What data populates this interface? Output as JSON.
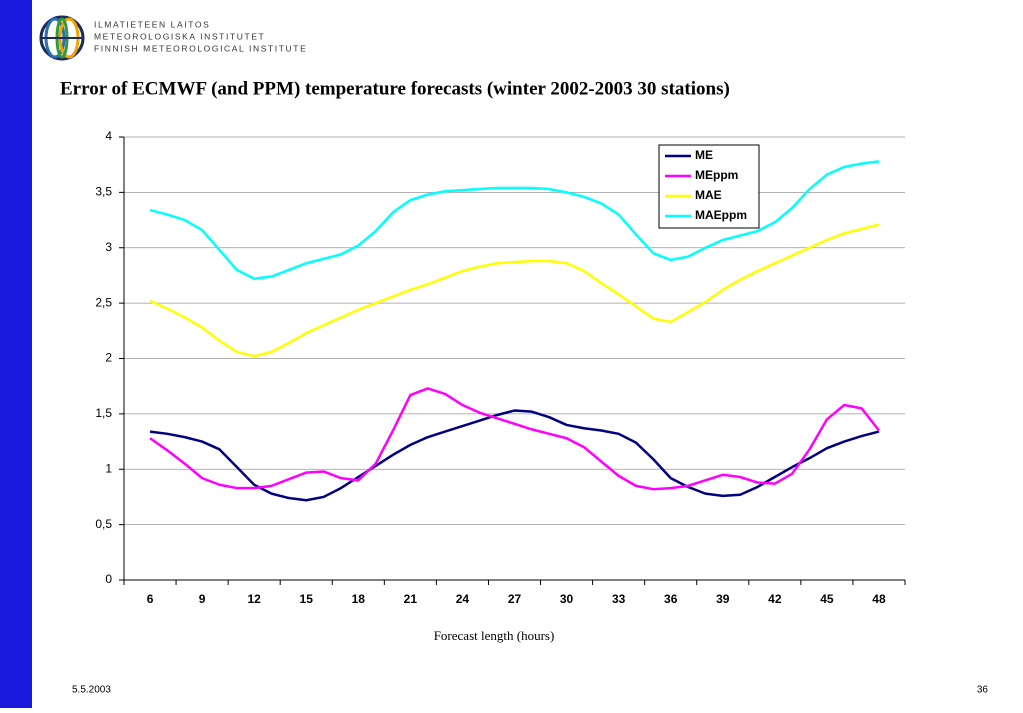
{
  "header": {
    "logo_lines": [
      "ILMATIETEEN LAITOS",
      "METEOROLOGISKA INSTITUTET",
      "FINNISH METEOROLOGICAL INSTITUTE"
    ]
  },
  "chart_data": {
    "type": "line",
    "title": "Error of ECMWF (and PPM) temperature forecasts (winter 2002-2003 30 stations)",
    "xlabel": "Forecast length (hours)",
    "x": [
      6,
      7,
      8,
      9,
      10,
      11,
      12,
      13,
      14,
      15,
      16,
      17,
      18,
      19,
      20,
      21,
      22,
      23,
      24,
      25,
      26,
      27,
      28,
      29,
      30,
      31,
      32,
      33,
      34,
      35,
      36,
      37,
      38,
      39,
      40,
      41,
      42,
      43,
      44,
      45,
      46,
      47,
      48
    ],
    "xlim": [
      4.5,
      49.5
    ],
    "xticks": [
      6,
      9,
      12,
      15,
      18,
      21,
      24,
      27,
      30,
      33,
      36,
      39,
      42,
      45,
      48
    ],
    "ylim": [
      0,
      4
    ],
    "yticks": [
      0,
      {
        "value": 0.5,
        "label": "0,5"
      },
      1,
      {
        "value": 1.5,
        "label": "1,5"
      },
      2,
      {
        "value": 2.5,
        "label": "2,5"
      },
      3,
      {
        "value": 3.5,
        "label": "3,5"
      },
      4
    ],
    "grid": true,
    "legend": "upper right",
    "series": [
      {
        "name": "ME",
        "color": "#000080",
        "values": [
          1.34,
          1.32,
          1.29,
          1.25,
          1.18,
          1.02,
          0.86,
          0.78,
          0.74,
          0.72,
          0.75,
          0.83,
          0.93,
          1.03,
          1.13,
          1.22,
          1.29,
          1.34,
          1.39,
          1.44,
          1.49,
          1.53,
          1.52,
          1.47,
          1.4,
          1.37,
          1.35,
          1.32,
          1.24,
          1.09,
          0.92,
          0.84,
          0.78,
          0.76,
          0.77,
          0.84,
          0.93,
          1.02,
          1.1,
          1.19,
          1.25,
          1.3,
          1.34
        ]
      },
      {
        "name": "MEppm",
        "color": "#ff00ff",
        "values": [
          1.28,
          1.17,
          1.05,
          0.92,
          0.86,
          0.83,
          0.83,
          0.85,
          0.91,
          0.97,
          0.98,
          0.92,
          0.9,
          1.05,
          1.35,
          1.67,
          1.73,
          1.68,
          1.58,
          1.51,
          1.46,
          1.41,
          1.36,
          1.32,
          1.28,
          1.2,
          1.07,
          0.94,
          0.85,
          0.82,
          0.83,
          0.85,
          0.9,
          0.95,
          0.93,
          0.88,
          0.87,
          0.96,
          1.18,
          1.45,
          1.58,
          1.55,
          1.35
        ]
      },
      {
        "name": "MAE",
        "color": "#ffff00",
        "values": [
          2.52,
          2.45,
          2.37,
          2.28,
          2.16,
          2.06,
          2.02,
          2.06,
          2.14,
          2.23,
          2.3,
          2.37,
          2.44,
          2.5,
          2.56,
          2.62,
          2.67,
          2.73,
          2.79,
          2.83,
          2.86,
          2.87,
          2.88,
          2.88,
          2.86,
          2.79,
          2.68,
          2.58,
          2.47,
          2.36,
          2.33,
          2.42,
          2.51,
          2.62,
          2.71,
          2.79,
          2.86,
          2.93,
          3.0,
          3.07,
          3.13,
          3.17,
          3.21
        ]
      },
      {
        "name": "MAEppm",
        "color": "#00ffff",
        "values": [
          3.34,
          3.3,
          3.25,
          3.16,
          2.98,
          2.8,
          2.72,
          2.74,
          2.8,
          2.86,
          2.9,
          2.94,
          3.02,
          3.15,
          3.32,
          3.43,
          3.48,
          3.51,
          3.52,
          3.53,
          3.54,
          3.54,
          3.54,
          3.53,
          3.5,
          3.46,
          3.4,
          3.3,
          3.12,
          2.95,
          2.89,
          2.92,
          3.0,
          3.07,
          3.11,
          3.15,
          3.23,
          3.36,
          3.53,
          3.66,
          3.73,
          3.76,
          3.78
        ]
      }
    ]
  },
  "footer": {
    "date": "5.5.2003",
    "page": "36"
  }
}
